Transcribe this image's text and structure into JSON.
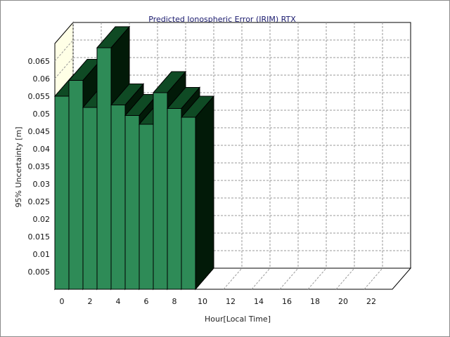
{
  "chart_data": {
    "type": "bar",
    "title": "Predicted Ionospheric Error (IRIM) RTX",
    "xlabel": "Hour[Local Time]",
    "ylabel": "95% Uncertainty [m]",
    "categories": [
      0,
      1,
      2,
      3,
      4,
      5,
      6,
      7,
      8,
      9,
      10,
      11,
      12,
      13,
      14,
      15,
      16,
      17,
      18,
      19,
      20,
      21,
      22,
      23
    ],
    "values": [
      0.055,
      0.0595,
      0.0518,
      0.0688,
      0.0525,
      0.0495,
      0.047,
      0.056,
      0.0515,
      0.049,
      null,
      null,
      null,
      null,
      null,
      null,
      null,
      null,
      null,
      null,
      null,
      null,
      null,
      null
    ],
    "x_tick_labels": [
      "0",
      "2",
      "4",
      "6",
      "8",
      "10",
      "12",
      "14",
      "16",
      "18",
      "20",
      "22"
    ],
    "y_tick_labels": [
      "0.005",
      "0.01",
      "0.015",
      "0.02",
      "0.025",
      "0.03",
      "0.035",
      "0.04",
      "0.045",
      "0.05",
      "0.055",
      "0.06",
      "0.065"
    ],
    "ylim": [
      0,
      0.07
    ],
    "grid": true,
    "colors": {
      "bar_front": "#2e8b57",
      "bar_top": "#0f4a24",
      "bar_side": "#021a08",
      "back_wall": "#ffffff",
      "left_wall": "#ffffe6",
      "floor": "#ffffff",
      "grid": "#9a9a9a",
      "title": "#1a1a6e"
    }
  }
}
